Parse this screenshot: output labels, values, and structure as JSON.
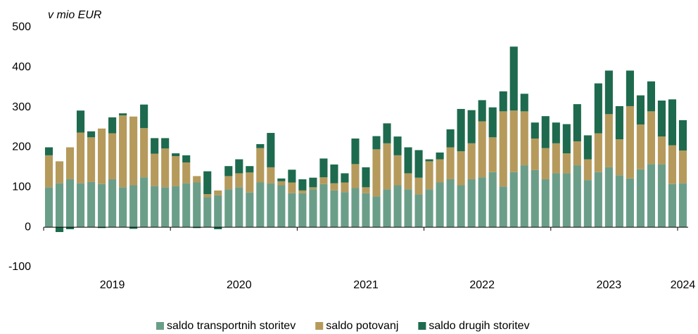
{
  "chart_data": {
    "type": "bar",
    "stacked": true,
    "y_axis_label": "v mio EUR",
    "categories": [
      null,
      null,
      null,
      null,
      null,
      null,
      "2019",
      null,
      null,
      null,
      null,
      null,
      null,
      null,
      null,
      null,
      null,
      null,
      "2020",
      null,
      null,
      null,
      null,
      null,
      null,
      null,
      null,
      null,
      null,
      null,
      "2021",
      null,
      null,
      null,
      null,
      null,
      null,
      null,
      null,
      null,
      null,
      "2022",
      null,
      null,
      null,
      null,
      null,
      null,
      null,
      null,
      null,
      null,
      null,
      "2023",
      null,
      null,
      null,
      null,
      null,
      null,
      "2024"
    ],
    "series": [
      {
        "name": "saldo transportnih storitev",
        "color": "#6b9e89",
        "values": [
          100,
          110,
          120,
          110,
          113,
          108,
          120,
          100,
          105,
          125,
          103,
          100,
          103,
          110,
          112,
          75,
          80,
          95,
          100,
          87,
          112,
          110,
          105,
          85,
          85,
          95,
          108,
          92,
          88,
          98,
          85,
          77,
          95,
          105,
          95,
          82,
          95,
          112,
          120,
          105,
          120,
          125,
          138,
          102,
          138,
          155,
          143,
          120,
          135,
          135,
          155,
          118,
          138,
          150,
          130,
          122,
          145,
          158,
          157,
          108,
          110
        ]
      },
      {
        "name": "saldo potovanj",
        "color": "#b59a5c",
        "values": [
          80,
          55,
          80,
          127,
          112,
          139,
          115,
          180,
          172,
          123,
          81,
          97,
          75,
          52,
          16,
          8,
          12,
          33,
          35,
          50,
          86,
          40,
          10,
          27,
          7,
          5,
          17,
          18,
          24,
          60,
          15,
          118,
          115,
          75,
          40,
          42,
          70,
          58,
          80,
          85,
          90,
          140,
          87,
          188,
          154,
          135,
          79,
          78,
          75,
          50,
          60,
          52,
          97,
          133,
          90,
          181,
          112,
          132,
          70,
          97,
          82
        ]
      },
      {
        "name": "saldo drugih storitev",
        "color": "#1e6a4e",
        "values": [
          20,
          -12,
          -5,
          55,
          15,
          -2,
          40,
          5,
          -4,
          59,
          39,
          26,
          7,
          18,
          -2,
          57,
          -5,
          25,
          35,
          16,
          10,
          86,
          7,
          32,
          28,
          24,
          47,
          47,
          23,
          64,
          50,
          33,
          50,
          47,
          65,
          69,
          5,
          17,
          45,
          106,
          83,
          53,
          75,
          50,
          160,
          44,
          40,
          80,
          52,
          73,
          93,
          60,
          125,
          109,
          83,
          89,
          73,
          75,
          90,
          115,
          76
        ]
      }
    ],
    "ylim": [
      -100,
      500
    ],
    "yticks": [
      -100,
      0,
      100,
      200,
      300,
      400,
      500
    ],
    "legend": "bottom"
  }
}
